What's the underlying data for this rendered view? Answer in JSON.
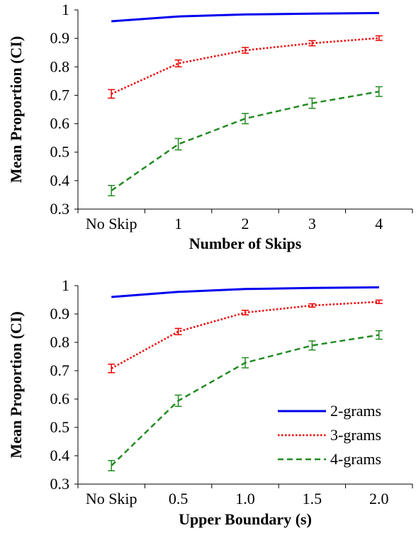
{
  "chart_data": [
    {
      "type": "line",
      "title": "",
      "xlabel": "Number of Skips",
      "ylabel": "Mean Proportion (CI)",
      "categories": [
        "No Skip",
        "1",
        "2",
        "3",
        "4"
      ],
      "ylim": [
        0.3,
        1
      ],
      "yticks": [
        "0.3",
        "0.4",
        "0.5",
        "0.6",
        "0.7",
        "0.8",
        "0.9",
        "1"
      ],
      "grid": false,
      "legend": false,
      "series": [
        {
          "name": "2-grams",
          "color": "#0000ee",
          "style": "solid",
          "values": [
            0.96,
            0.977,
            0.984,
            0.987,
            0.989
          ],
          "ci": [
            0.003,
            0.002,
            0.002,
            0.002,
            0.002
          ],
          "error_bars": false
        },
        {
          "name": "3-grams",
          "color": "#ee0000",
          "style": "dotted",
          "values": [
            0.705,
            0.812,
            0.858,
            0.883,
            0.901
          ],
          "ci": [
            0.015,
            0.012,
            0.01,
            0.009,
            0.008
          ],
          "error_bars": true
        },
        {
          "name": "4-grams",
          "color": "#228b22",
          "style": "dashed",
          "values": [
            0.365,
            0.528,
            0.618,
            0.672,
            0.713
          ],
          "ci": [
            0.018,
            0.02,
            0.018,
            0.018,
            0.017
          ],
          "error_bars": true
        }
      ]
    },
    {
      "type": "line",
      "title": "",
      "xlabel": "Upper Boundary (s)",
      "ylabel": "Mean Proportion (CI)",
      "categories": [
        "No Skip",
        "0.5",
        "1.0",
        "1.5",
        "2.0"
      ],
      "ylim": [
        0.3,
        1
      ],
      "yticks": [
        "0.3",
        "0.4",
        "0.5",
        "0.6",
        "0.7",
        "0.8",
        "0.9",
        "1"
      ],
      "grid": false,
      "legend": true,
      "legend_position": "bottom-right",
      "series": [
        {
          "name": "2-grams",
          "color": "#0000ee",
          "style": "solid",
          "values": [
            0.96,
            0.978,
            0.988,
            0.992,
            0.994
          ],
          "ci": [
            0.003,
            0.002,
            0.002,
            0.002,
            0.002
          ],
          "error_bars": false
        },
        {
          "name": "3-grams",
          "color": "#ee0000",
          "style": "dotted",
          "values": [
            0.708,
            0.838,
            0.905,
            0.93,
            0.943
          ],
          "ci": [
            0.015,
            0.011,
            0.008,
            0.006,
            0.006
          ],
          "error_bars": true
        },
        {
          "name": "4-grams",
          "color": "#228b22",
          "style": "dashed",
          "values": [
            0.365,
            0.594,
            0.728,
            0.789,
            0.826
          ],
          "ci": [
            0.018,
            0.02,
            0.018,
            0.016,
            0.015
          ],
          "error_bars": true
        }
      ]
    }
  ]
}
